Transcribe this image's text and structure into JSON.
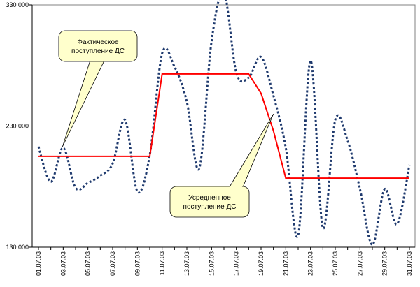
{
  "chart_data": {
    "type": "line",
    "title": "",
    "xlabel": "",
    "ylabel": "",
    "ylim": [
      130000,
      330000
    ],
    "yticks": [
      {
        "value": 130000,
        "label": "130 000"
      },
      {
        "value": 230000,
        "label": "230 000"
      },
      {
        "value": 330000,
        "label": "330 000"
      }
    ],
    "x_tick_labels": [
      "01.07.03",
      "03.07.03",
      "05.07.03",
      "07.07.03",
      "09.07.03",
      "11.07.03",
      "13.07.03",
      "15.07.03",
      "17.07.03",
      "19.07.03",
      "21.07.03",
      "23.07.03",
      "25.07.03",
      "27.07.03",
      "29.07.03",
      "31.07.03"
    ],
    "x": [
      "01.07.03",
      "02.07.03",
      "03.07.03",
      "04.07.03",
      "05.07.03",
      "06.07.03",
      "07.07.03",
      "08.07.03",
      "09.07.03",
      "10.07.03",
      "11.07.03",
      "12.07.03",
      "13.07.03",
      "14.07.03",
      "15.07.03",
      "16.07.03",
      "17.07.03",
      "18.07.03",
      "19.07.03",
      "20.07.03",
      "21.07.03",
      "22.07.03",
      "23.07.03",
      "24.07.03",
      "25.07.03",
      "26.07.03",
      "27.07.03",
      "28.07.03",
      "29.07.03",
      "30.07.03",
      "31.07.03"
    ],
    "reference_line": {
      "value": 230000,
      "color": "#000000"
    },
    "series": [
      {
        "style": "dotted",
        "color": "#1f3a6e",
        "values": [
          213000,
          184000,
          212000,
          179000,
          183000,
          189000,
          199000,
          235000,
          176000,
          206000,
          290000,
          279000,
          250000,
          195000,
          300000,
          340000,
          274000,
          270000,
          287000,
          255000,
          212000,
          140000,
          284000,
          146000,
          235000,
          218000,
          178000,
          132000,
          178000,
          149000,
          198000
        ]
      },
      {
        "style": "solid",
        "color": "#ff0000",
        "values": [
          205000,
          205000,
          205000,
          205000,
          205000,
          205000,
          205000,
          205000,
          205000,
          205000,
          273000,
          273000,
          273000,
          273000,
          273000,
          273000,
          273000,
          273000,
          257000,
          226000,
          187000,
          187000,
          187000,
          187000,
          187000,
          187000,
          187000,
          187000,
          187000,
          187000,
          187000
        ]
      }
    ],
    "annotations": [
      {
        "line1": "Фактическое",
        "line2": "поступление ДС"
      },
      {
        "line1": "Усредненное",
        "line2": "поступление ДС"
      }
    ]
  }
}
